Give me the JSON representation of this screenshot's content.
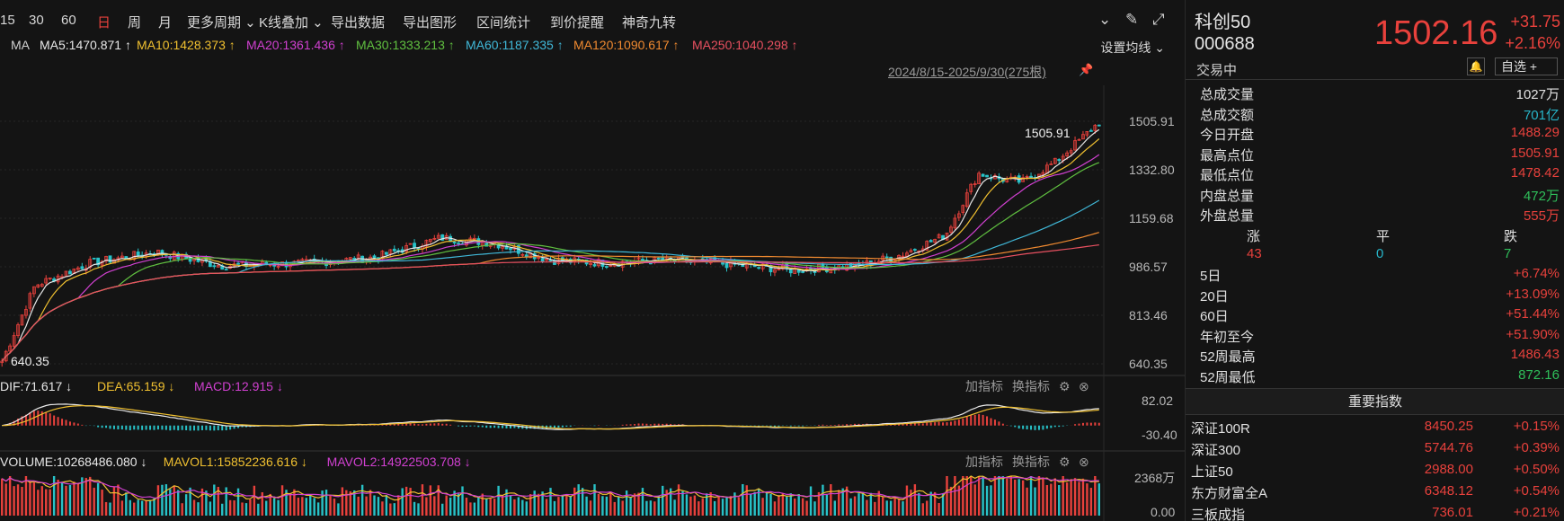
{
  "toolbar": {
    "items": [
      "15",
      "30",
      "60",
      "日",
      "周",
      "月",
      "更多周期",
      "K线叠加",
      "导出数据",
      "导出图形",
      "区间统计",
      "到价提醒",
      "神奇九转"
    ],
    "active_index": 3,
    "icons": [
      "chevron-circle-icon",
      "brush-icon",
      "expand-icon"
    ]
  },
  "ma": {
    "prefix": "MA",
    "items": [
      {
        "label": "MA5:1470.871",
        "color": "#e8e8e8"
      },
      {
        "label": "MA10:1428.373",
        "color": "#f0c030"
      },
      {
        "label": "MA20:1361.436",
        "color": "#d040d0"
      },
      {
        "label": "MA30:1333.213",
        "color": "#60c040"
      },
      {
        "label": "MA60:1187.335",
        "color": "#40b8d8"
      },
      {
        "label": "MA120:1090.617",
        "color": "#f08a30"
      },
      {
        "label": "MA250:1040.298",
        "color": "#e85060"
      }
    ],
    "setting_label": "设置均线"
  },
  "date_range": "2024/8/15-2025/9/30(275根)",
  "main_chart": {
    "y_ticks": [
      "1505.91",
      "1332.80",
      "1159.68",
      "986.57",
      "813.46",
      "640.35"
    ],
    "high_label": "1505.91",
    "low_label": "640.35"
  },
  "macd": {
    "labels": [
      {
        "text": "DIF:71.617",
        "color": "#e8e8e8"
      },
      {
        "text": "DEA:65.159",
        "color": "#f0c030"
      },
      {
        "text": "MACD:12.915",
        "color": "#d040d0"
      }
    ],
    "y_ticks": [
      "82.02",
      "-30.40"
    ],
    "add_label": "加指标",
    "switch_label": "换指标"
  },
  "volume": {
    "labels": [
      {
        "text": "VOLUME:10268486.080",
        "color": "#e8e8e8"
      },
      {
        "text": "MAVOL1:15852236.616",
        "color": "#f0c030"
      },
      {
        "text": "MAVOL2:14922503.708",
        "color": "#d040d0"
      }
    ],
    "y_ticks": [
      "2368万",
      "0.00"
    ],
    "add_label": "加指标",
    "switch_label": "换指标"
  },
  "panel": {
    "name": "科创50",
    "code": "000688",
    "status": "交易中",
    "price": "1502.16",
    "change": "+31.75",
    "change_pct": "+2.16%",
    "fav_label": "自选 +",
    "stats": [
      {
        "k": "总成交量",
        "v": "1027万",
        "cls": "white"
      },
      {
        "k": "总成交额",
        "v": "701亿",
        "cls": "cyan"
      },
      {
        "k": "今日开盘",
        "v": "1488.29",
        "cls": "red"
      },
      {
        "k": "最高点位",
        "v": "1505.91",
        "cls": "red"
      },
      {
        "k": "最低点位",
        "v": "1478.42",
        "cls": "red"
      },
      {
        "k": "内盘总量",
        "v": "472万",
        "cls": "green"
      },
      {
        "k": "外盘总量",
        "v": "555万",
        "cls": "red"
      }
    ],
    "breadth": {
      "up_label": "涨",
      "flat_label": "平",
      "down_label": "跌",
      "up": "43",
      "flat": "0",
      "down": "7"
    },
    "periods": [
      {
        "k": "5日",
        "v": "+6.74%",
        "cls": "red"
      },
      {
        "k": "20日",
        "v": "+13.09%",
        "cls": "red"
      },
      {
        "k": "60日",
        "v": "+51.44%",
        "cls": "red"
      },
      {
        "k": "年初至今",
        "v": "+51.90%",
        "cls": "red"
      },
      {
        "k": "52周最高",
        "v": "1486.43",
        "cls": "red"
      },
      {
        "k": "52周最低",
        "v": "872.16",
        "cls": "green"
      }
    ],
    "index_title": "重要指数",
    "indices": [
      {
        "n": "深证100R",
        "p": "8450.25",
        "c": "+0.15%"
      },
      {
        "n": "深证300",
        "p": "5744.76",
        "c": "+0.39%"
      },
      {
        "n": "上证50",
        "p": "2988.00",
        "c": "+0.50%"
      },
      {
        "n": "东方财富全A",
        "p": "6348.12",
        "c": "+0.54%"
      },
      {
        "n": "三板成指",
        "p": "736.01",
        "c": "+0.21%"
      }
    ]
  }
}
